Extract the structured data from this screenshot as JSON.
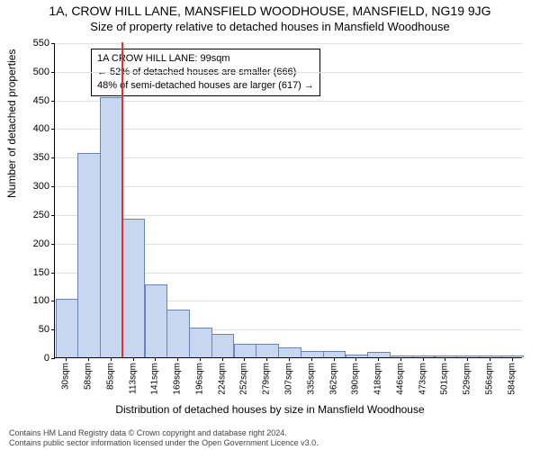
{
  "title": "1A, CROW HILL LANE, MANSFIELD WOODHOUSE, MANSFIELD, NG19 9JG",
  "subtitle": "Size of property relative to detached houses in Mansfield Woodhouse",
  "chart": {
    "type": "bar",
    "background_color": "#ffffff",
    "grid_color": "#e0e0e0",
    "axis_color": "#000000",
    "ylabel": "Number of detached properties",
    "xlabel": "Distribution of detached houses by size in Mansfield Woodhouse",
    "label_fontsize": 12,
    "tick_fontsize": 11,
    "ylim": [
      0,
      550
    ],
    "ytick_step": 50,
    "bar_width": 0.95,
    "bar_fill": "#c7d7f0",
    "bar_border": "#6a84b8",
    "marker_line_color": "#e03030",
    "marker_xvalue": "99sqm",
    "categories": [
      "30sqm",
      "58sqm",
      "85sqm",
      "113sqm",
      "141sqm",
      "169sqm",
      "196sqm",
      "224sqm",
      "252sqm",
      "279sqm",
      "307sqm",
      "335sqm",
      "362sqm",
      "390sqm",
      "418sqm",
      "446sqm",
      "473sqm",
      "501sqm",
      "529sqm",
      "556sqm",
      "584sqm"
    ],
    "values": [
      100,
      355,
      452,
      240,
      125,
      82,
      50,
      40,
      22,
      22,
      15,
      10,
      10,
      3,
      8,
      2,
      2,
      2,
      2,
      2,
      2
    ],
    "legend": {
      "line1": "1A CROW HILL LANE: 99sqm",
      "line2": "← 52% of detached houses are smaller (666)",
      "line3": "48% of semi-detached houses are larger (617) →",
      "fontsize": 11
    }
  },
  "footer": {
    "line1": "Contains HM Land Registry data © Crown copyright and database right 2024.",
    "line2": "Contains public sector information licensed under the Open Government Licence v3.0."
  }
}
